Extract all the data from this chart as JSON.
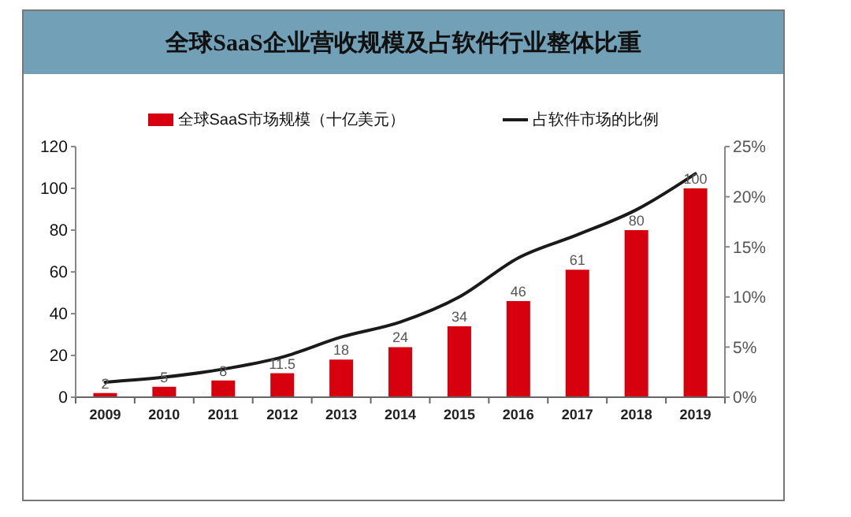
{
  "chart_data": {
    "type": "bar",
    "title": "全球SaaS企业营收规模及占软件行业整体比重",
    "categories": [
      "2009",
      "2010",
      "2011",
      "2012",
      "2013",
      "2014",
      "2015",
      "2016",
      "2017",
      "2018",
      "2019"
    ],
    "series": [
      {
        "name": "全球SaaS市场规模（十亿美元）",
        "color": "#d7000f",
        "values": [
          2,
          5,
          8,
          11.5,
          18,
          24,
          34,
          46,
          61,
          80,
          100
        ],
        "value_labels": [
          "2",
          "5",
          "8",
          "11.5",
          "18",
          "24",
          "34",
          "46",
          "61",
          "80",
          "100"
        ]
      },
      {
        "name": "占软件市场的比例",
        "type": "line",
        "axis": "y2",
        "color": "#1a1a1a",
        "values": [
          1.5,
          2,
          2.8,
          4,
          6,
          7.5,
          10,
          13.9,
          16.2,
          18.7,
          22.3
        ]
      }
    ],
    "ylim": [
      0,
      120
    ],
    "yticks": [
      0,
      20,
      40,
      60,
      80,
      100,
      120
    ],
    "y2lim": [
      0,
      25
    ],
    "y2ticks": [
      {
        "value": 0,
        "label": "0%"
      },
      {
        "value": 5,
        "label": "5%"
      },
      {
        "value": 10,
        "label": "10%"
      },
      {
        "value": 15,
        "label": "15%"
      },
      {
        "value": 20,
        "label": "20%"
      },
      {
        "value": 25,
        "label": "25%"
      }
    ],
    "legend": "top",
    "marker": "none",
    "line_style": "solid"
  }
}
